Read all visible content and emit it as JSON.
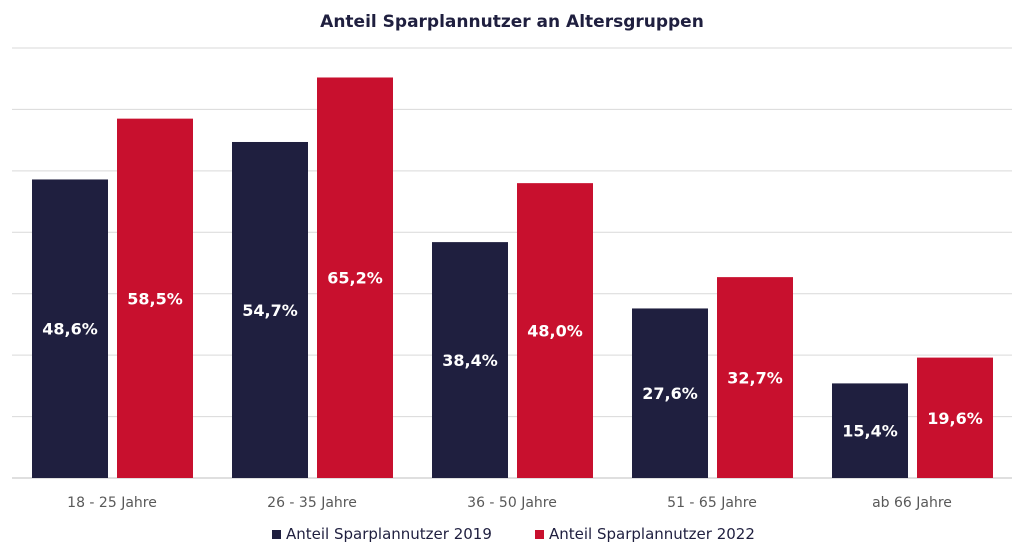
{
  "chart_data": {
    "type": "bar",
    "title": "Anteil Sparplannutzer an Altersgruppen",
    "xlabel": "",
    "ylabel": "",
    "categories": [
      "18 - 25 Jahre",
      "26 - 35 Jahre",
      "36 - 50 Jahre",
      "51 - 65 Jahre",
      "ab 66 Jahre"
    ],
    "series": [
      {
        "name": "Anteil Sparplannutzer 2019",
        "values": [
          48.6,
          54.7,
          38.4,
          27.6,
          15.4
        ],
        "labels": [
          "48,6%",
          "54,7%",
          "38,4%",
          "27,6%",
          "15,4%"
        ],
        "color": "#1f1f3f"
      },
      {
        "name": "Anteil Sparplannutzer 2022",
        "values": [
          58.5,
          65.2,
          48.0,
          32.7,
          19.6
        ],
        "labels": [
          "58,5%",
          "65,2%",
          "48,0%",
          "32,7%",
          "19,6%"
        ],
        "color": "#c8102e"
      }
    ],
    "ylim": [
      0,
      70
    ],
    "gridlines": true,
    "legend_position": "bottom"
  },
  "colors": {
    "title": "#1f1f3f",
    "grid": "#d9d9d9",
    "axis": "#bfbfbf"
  }
}
